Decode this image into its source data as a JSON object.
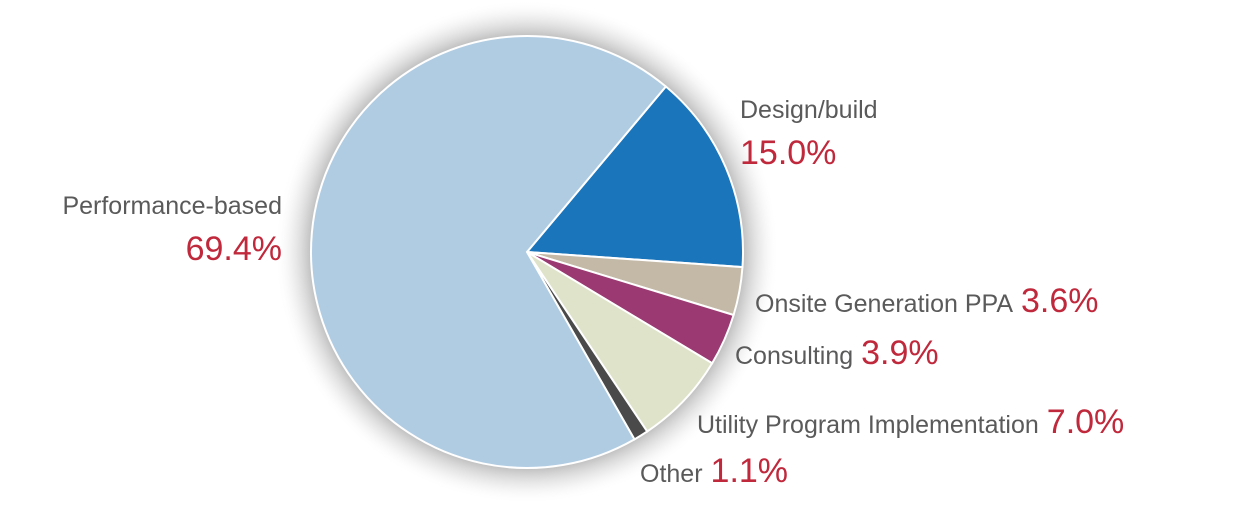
{
  "chart_data": {
    "type": "pie",
    "categories": [
      "Design/build",
      "Onsite Generation PPA",
      "Consulting",
      "Utility Program Implementation",
      "Other",
      "Performance-based"
    ],
    "values": [
      15.0,
      3.6,
      3.9,
      7.0,
      1.1,
      69.4
    ],
    "value_labels": [
      "15.0%",
      "3.6%",
      "3.9%",
      "7.0%",
      "1.1%",
      "69.4%"
    ],
    "colors": [
      "#1b75bb",
      "#c4b9a6",
      "#9b3a72",
      "#dfe3c9",
      "#4a4a4a",
      "#b0cce3"
    ]
  }
}
